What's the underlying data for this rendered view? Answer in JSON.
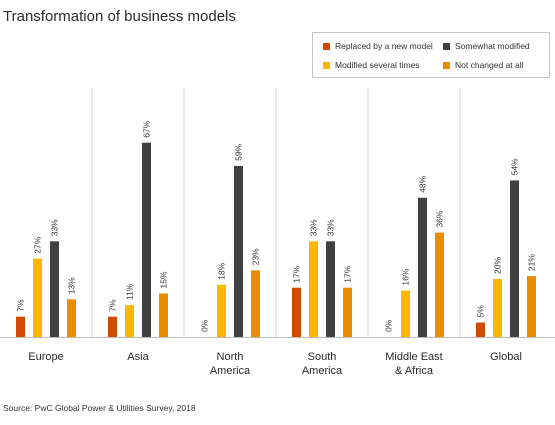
{
  "title": "Transformation of business models",
  "source": "Source: PwC Global Power & Utilities Survey, 2018",
  "legend": [
    {
      "label": "Replaced by a new model",
      "color": "#d04a02"
    },
    {
      "label": "Somewhat modified",
      "color": "#404041"
    },
    {
      "label": "Modified several times",
      "color": "#ffb600"
    },
    {
      "label": "Not changed at all",
      "color": "#eb8c00"
    }
  ],
  "chart_data": {
    "type": "bar",
    "title": "Transformation of business models",
    "categories": [
      [
        "Europe"
      ],
      [
        "Asia"
      ],
      [
        "North",
        "America"
      ],
      [
        "South",
        "America"
      ],
      [
        "Middle East",
        "& Africa"
      ],
      [
        "Global"
      ]
    ],
    "series": [
      {
        "name": "Replaced by a new model",
        "color": "#d04a02",
        "values": [
          7,
          7,
          0,
          17,
          0,
          5
        ],
        "labels": [
          "7%",
          "7%",
          "0%",
          "17%",
          "0%",
          "5%"
        ]
      },
      {
        "name": "Modified several times",
        "color": "#ffb600",
        "values": [
          27,
          11,
          18,
          33,
          16,
          20
        ],
        "labels": [
          "27%",
          "11%",
          "18%",
          "33%",
          "16%",
          "20%"
        ]
      },
      {
        "name": "Somewhat modified",
        "color": "#404041",
        "values": [
          33,
          67,
          59,
          33,
          48,
          54
        ],
        "labels": [
          "33%",
          "67%",
          "59%",
          "33%",
          "48%",
          "54%"
        ]
      },
      {
        "name": "Not changed at all",
        "color": "#eb8c00",
        "values": [
          13,
          15,
          23,
          17,
          36,
          21
        ],
        "labels": [
          "13%",
          "15%",
          "23%",
          "17%",
          "36%",
          "21%"
        ]
      }
    ],
    "ylim": [
      0,
      70
    ],
    "legend_position": "top-right"
  }
}
